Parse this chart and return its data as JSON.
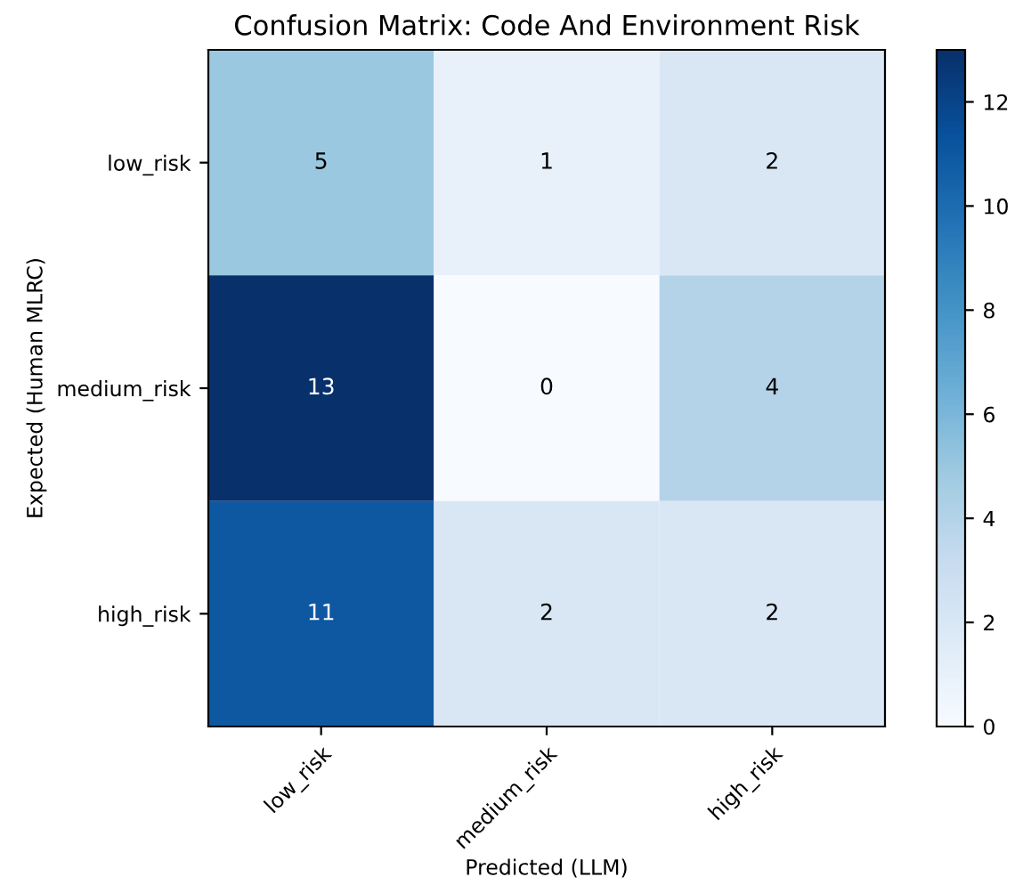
{
  "chart_data": {
    "type": "heatmap",
    "title": "Confusion Matrix: Code And Environment Risk",
    "xlabel": "Predicted (LLM)",
    "ylabel": "Expected (Human MLRC)",
    "categories": [
      "low_risk",
      "medium_risk",
      "high_risk"
    ],
    "y_categories": [
      "low_risk",
      "medium_risk",
      "high_risk"
    ],
    "cells": [
      [
        5,
        1,
        2
      ],
      [
        13,
        0,
        4
      ],
      [
        11,
        2,
        2
      ]
    ],
    "clim": [
      0,
      13
    ],
    "cticks": [
      0,
      2,
      4,
      6,
      8,
      10,
      12
    ],
    "data_labels": true
  }
}
